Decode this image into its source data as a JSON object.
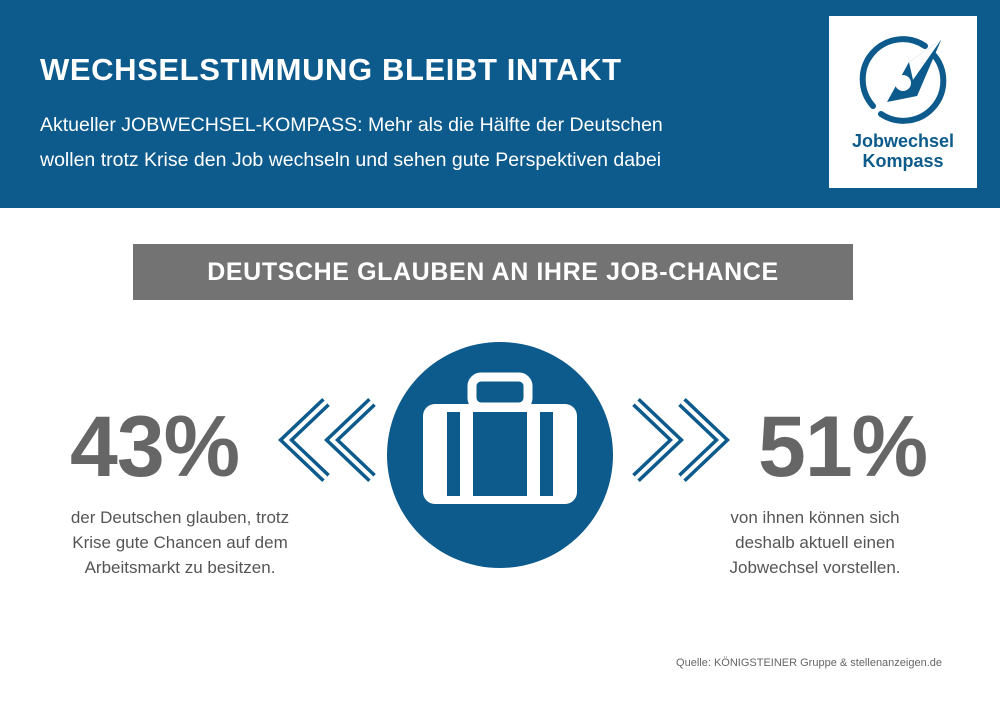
{
  "header": {
    "title": "WECHSELSTIMMUNG BLEIBT INTAKT",
    "subtitle_lines": [
      "Aktueller JOBWECHSEL-KOMPASS: Mehr als die Hälfte der Deutschen",
      "wollen trotz Krise den Job wechseln und sehen gute Perspektiven dabei"
    ]
  },
  "logo": {
    "lines": [
      "Jobwechsel",
      "Kompass"
    ],
    "icon": "compass-icon"
  },
  "banner": {
    "text": "DEUTSCHE GLAUBEN AN IHRE JOB-CHANCE"
  },
  "stats": {
    "left": {
      "value": "43%",
      "lines": [
        "der Deutschen glauben, trotz",
        "Krise gute Chancen auf dem",
        "Arbeitsmarkt zu besitzen."
      ]
    },
    "right": {
      "value": "51%",
      "lines": [
        "von ihnen können sich",
        "deshalb aktuell einen",
        "Jobwechsel vorstellen."
      ]
    }
  },
  "center_icon": "suitcase-icon",
  "arrow_icons": [
    "double-chevron-left-icon",
    "double-chevron-right-icon"
  ],
  "source": "Quelle: KÖNIGSTEINER Gruppe & stellenanzeigen.de",
  "colors": {
    "brand_blue": "#0d5a8c",
    "banner_gray": "#737373",
    "stat_gray": "#666666",
    "background": "#ffffff"
  }
}
